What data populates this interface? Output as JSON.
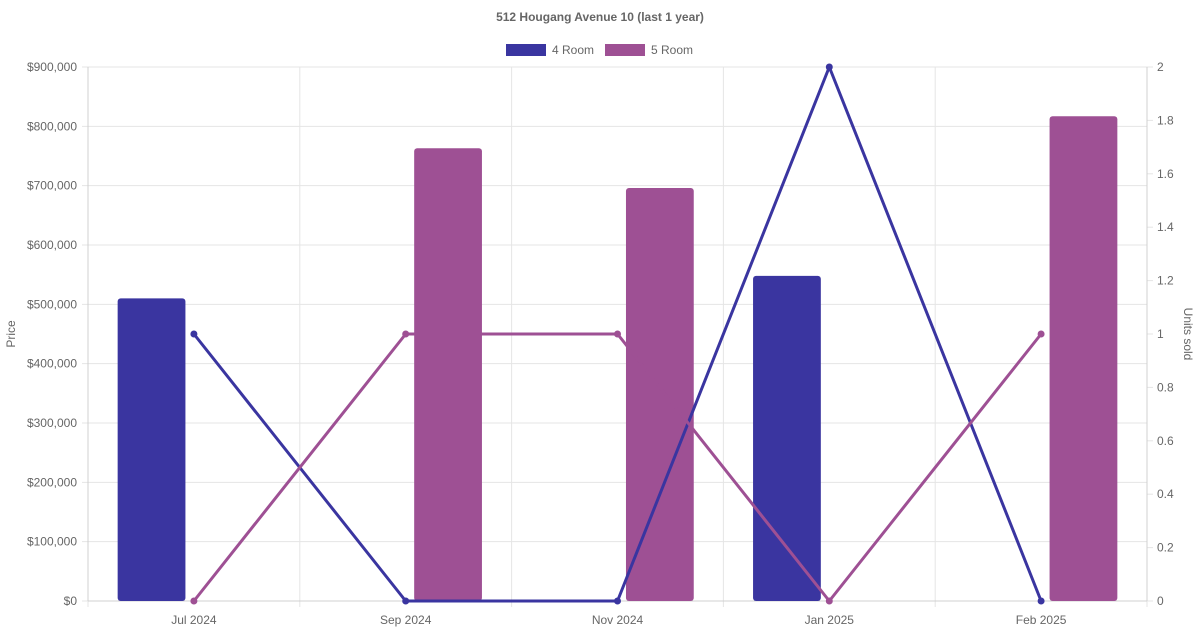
{
  "chart_data": {
    "type": "bar",
    "title": "512 Hougang Avenue 10 (last 1 year)",
    "categories": [
      "Jul 2024",
      "Sep 2024",
      "Nov 2024",
      "Jan 2025",
      "Feb 2025"
    ],
    "y_left": {
      "label": "Price",
      "range": [
        0,
        900000
      ],
      "ticks": [
        "$0",
        "$100,000",
        "$200,000",
        "$300,000",
        "$400,000",
        "$500,000",
        "$600,000",
        "$700,000",
        "$800,000",
        "$900,000"
      ]
    },
    "y_right": {
      "label": "Units sold",
      "range": [
        0,
        2
      ],
      "ticks": [
        "0",
        "0.2",
        "0.4",
        "0.6",
        "0.8",
        "1",
        "1.2",
        "1.4",
        "1.6",
        "1.8",
        "2"
      ]
    },
    "legend": {
      "placement": "top-center",
      "entries": [
        {
          "name": "4 Room",
          "color": "#3a35a0"
        },
        {
          "name": "5 Room",
          "color": "#9e5094"
        }
      ]
    },
    "grid": true,
    "series": [
      {
        "name": "4 Room",
        "kind": "bar",
        "axis": "left",
        "color": "#3a35a0",
        "values": [
          510000,
          null,
          null,
          548000,
          null
        ]
      },
      {
        "name": "5 Room",
        "kind": "bar",
        "axis": "left",
        "color": "#9e5094",
        "values": [
          null,
          763000,
          696000,
          null,
          817000
        ]
      },
      {
        "name": "4 Room",
        "kind": "line",
        "axis": "right",
        "color": "#3a35a0",
        "values": [
          1,
          0,
          0,
          2,
          0
        ]
      },
      {
        "name": "5 Room",
        "kind": "line",
        "axis": "right",
        "color": "#9e5094",
        "values": [
          0,
          1,
          1,
          0,
          1
        ]
      }
    ]
  }
}
